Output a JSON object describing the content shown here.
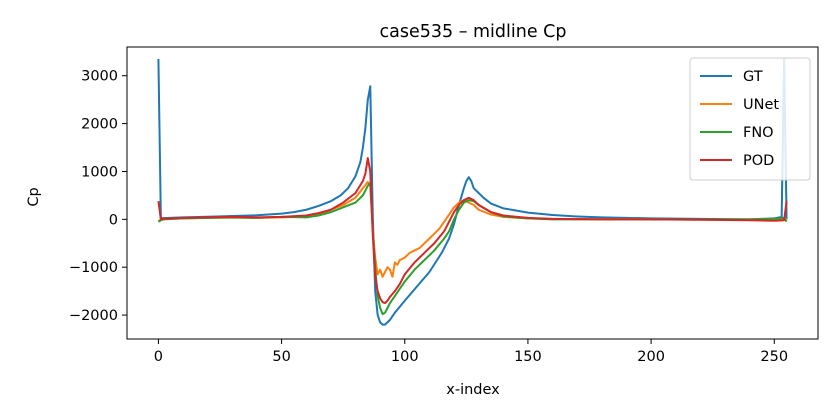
{
  "chart_data": {
    "type": "line",
    "title": "case535 – midline Cp",
    "xlabel": "x-index",
    "ylabel": "Cp",
    "xlim": [
      -12.75,
      267.75
    ],
    "ylim": [
      -2500,
      3600
    ],
    "xticks": [
      0,
      50,
      100,
      150,
      200,
      250
    ],
    "yticks": [
      -2000,
      -1000,
      0,
      1000,
      2000,
      3000
    ],
    "xtick_labels": [
      "0",
      "50",
      "100",
      "150",
      "200",
      "250"
    ],
    "ytick_labels": [
      "−2000",
      "−1000",
      "0",
      "1000",
      "2000",
      "3000"
    ],
    "grid": false,
    "legend_position": "top-right",
    "series": [
      {
        "name": "GT",
        "color": "#1f77b4",
        "x": [
          0,
          1,
          2,
          10,
          20,
          30,
          40,
          50,
          55,
          60,
          65,
          70,
          74,
          77,
          80,
          82,
          83,
          84,
          85,
          86,
          87,
          88,
          89,
          90,
          91,
          92,
          94,
          96,
          100,
          105,
          110,
          115,
          118,
          120,
          122,
          124,
          125,
          126,
          127,
          128,
          130,
          132,
          135,
          140,
          150,
          160,
          170,
          180,
          190,
          200,
          210,
          220,
          230,
          240,
          250,
          253,
          254,
          255
        ],
        "y": [
          3350,
          20,
          25,
          40,
          55,
          70,
          85,
          120,
          150,
          200,
          280,
          380,
          500,
          650,
          900,
          1200,
          1500,
          1900,
          2500,
          2780,
          100,
          -1500,
          -2000,
          -2150,
          -2200,
          -2200,
          -2100,
          -1950,
          -1700,
          -1400,
          -1100,
          -700,
          -400,
          -100,
          300,
          650,
          800,
          880,
          800,
          650,
          550,
          450,
          330,
          230,
          140,
          90,
          60,
          40,
          30,
          20,
          15,
          10,
          5,
          0,
          20,
          50,
          3350,
          0
        ]
      },
      {
        "name": "UNet",
        "color": "#ff7f0e",
        "x": [
          0,
          1,
          2,
          10,
          20,
          30,
          40,
          50,
          60,
          65,
          70,
          75,
          80,
          83,
          85,
          86,
          87,
          88,
          89,
          90,
          91,
          92,
          93,
          94,
          95,
          96,
          97,
          98,
          100,
          102,
          104,
          106,
          108,
          110,
          112,
          114,
          116,
          118,
          120,
          122,
          124,
          126,
          128,
          130,
          135,
          140,
          150,
          160,
          180,
          200,
          220,
          240,
          250,
          254,
          255
        ],
        "y": [
          -40,
          0,
          10,
          20,
          30,
          35,
          30,
          40,
          60,
          100,
          200,
          300,
          450,
          650,
          780,
          700,
          -200,
          -800,
          -1150,
          -1050,
          -1200,
          -1100,
          -1000,
          -1050,
          -1200,
          -900,
          -950,
          -850,
          -800,
          -700,
          -650,
          -600,
          -500,
          -400,
          -300,
          -200,
          -50,
          100,
          250,
          350,
          400,
          350,
          300,
          200,
          100,
          50,
          20,
          10,
          5,
          0,
          -5,
          0,
          10,
          20,
          0
        ]
      },
      {
        "name": "FNO",
        "color": "#2ca02c",
        "x": [
          0,
          1,
          2,
          10,
          20,
          30,
          40,
          50,
          60,
          65,
          70,
          75,
          80,
          83,
          85,
          86,
          87,
          88,
          89,
          90,
          91,
          92,
          93,
          94,
          96,
          98,
          100,
          104,
          108,
          112,
          116,
          118,
          120,
          122,
          124,
          126,
          128,
          130,
          135,
          140,
          150,
          160,
          180,
          200,
          220,
          240,
          250,
          254,
          255
        ],
        "y": [
          -50,
          -20,
          0,
          20,
          30,
          40,
          30,
          50,
          40,
          80,
          150,
          250,
          350,
          500,
          700,
          760,
          -200,
          -1000,
          -1600,
          -1850,
          -1980,
          -1950,
          -1850,
          -1750,
          -1600,
          -1450,
          -1300,
          -1050,
          -850,
          -650,
          -400,
          -250,
          0,
          200,
          350,
          400,
          380,
          300,
          150,
          60,
          20,
          0,
          0,
          0,
          0,
          0,
          10,
          30,
          -50
        ]
      },
      {
        "name": "POD",
        "color": "#d62728",
        "x": [
          0,
          1,
          2,
          10,
          20,
          30,
          40,
          50,
          60,
          65,
          70,
          75,
          80,
          83,
          84,
          85,
          86,
          87,
          88,
          89,
          90,
          91,
          92,
          93,
          94,
          96,
          98,
          100,
          104,
          108,
          112,
          116,
          118,
          120,
          122,
          124,
          126,
          128,
          130,
          135,
          140,
          150,
          160,
          180,
          200,
          220,
          240,
          250,
          254,
          255
        ],
        "y": [
          380,
          0,
          10,
          30,
          40,
          50,
          40,
          50,
          80,
          130,
          200,
          350,
          550,
          800,
          950,
          1280,
          1000,
          -300,
          -1200,
          -1500,
          -1650,
          -1730,
          -1750,
          -1700,
          -1620,
          -1500,
          -1350,
          -1150,
          -900,
          -700,
          -500,
          -250,
          -50,
          150,
          300,
          400,
          450,
          400,
          300,
          150,
          80,
          30,
          10,
          0,
          0,
          -10,
          -20,
          -30,
          -20,
          380
        ]
      }
    ]
  }
}
